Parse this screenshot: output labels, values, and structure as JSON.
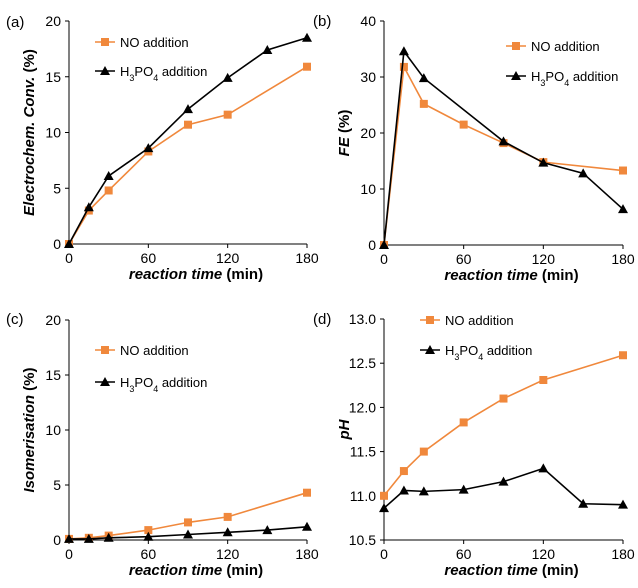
{
  "chart_data": [
    {
      "type": "line",
      "panel_label": "(a)",
      "xlabel": "reaction time",
      "xlabel_unit": "(min)",
      "ylabel": "Electrochem. Conv.",
      "ylabel_unit": "(%)",
      "xlim": [
        0,
        180
      ],
      "ylim": [
        0,
        20
      ],
      "xticks": [
        "0",
        "60",
        "120",
        "180"
      ],
      "yticks": [
        "0",
        "5",
        "10",
        "15",
        "20"
      ],
      "legend_position": "top-center",
      "series": [
        {
          "name": "NO addition",
          "name_html": "NO addition",
          "color": "#f0883c",
          "marker": "square",
          "x": [
            0,
            15,
            30,
            60,
            90,
            120,
            180
          ],
          "y": [
            0,
            3.0,
            4.8,
            8.3,
            10.7,
            11.6,
            15.9
          ]
        },
        {
          "name": "H3PO4 addition",
          "name_html": "H<tspan baseline-shift='sub' font-size='9'>3</tspan>PO<tspan baseline-shift='sub' font-size='9'>4</tspan> addition",
          "color": "#000000",
          "marker": "triangle",
          "x": [
            0,
            15,
            30,
            60,
            90,
            120,
            150,
            180
          ],
          "y": [
            0,
            3.3,
            6.1,
            8.6,
            12.1,
            14.9,
            17.4,
            18.5
          ]
        }
      ]
    },
    {
      "type": "line",
      "panel_label": "(b)",
      "xlabel": "reaction time",
      "xlabel_unit": "(min)",
      "ylabel": "FE",
      "ylabel_unit": "(%)",
      "xlim": [
        0,
        180
      ],
      "ylim": [
        0,
        40
      ],
      "xticks": [
        "0",
        "60",
        "120",
        "180"
      ],
      "yticks": [
        "0",
        "10",
        "20",
        "30",
        "40"
      ],
      "legend_position": "top-right",
      "series": [
        {
          "name": "NO addition",
          "name_html": "NO addition",
          "color": "#f0883c",
          "marker": "square",
          "x": [
            0,
            15,
            30,
            60,
            90,
            120,
            180
          ],
          "y": [
            0,
            31.8,
            25.2,
            21.5,
            18.2,
            14.8,
            13.3
          ]
        },
        {
          "name": "H3PO4 addition",
          "name_html": "H<tspan baseline-shift='sub' font-size='9'>3</tspan>PO<tspan baseline-shift='sub' font-size='9'>4</tspan> addition",
          "color": "#000000",
          "marker": "triangle",
          "x": [
            0,
            15,
            30,
            90,
            120,
            150,
            180
          ],
          "y": [
            0,
            34.6,
            29.8,
            18.5,
            14.7,
            12.8,
            6.4
          ]
        }
      ]
    },
    {
      "type": "line",
      "panel_label": "(c)",
      "xlabel": "reaction time",
      "xlabel_unit": "(min)",
      "ylabel": "Isomerisation",
      "ylabel_unit": "(%)",
      "xlim": [
        0,
        180
      ],
      "ylim": [
        0,
        20
      ],
      "xticks": [
        "0",
        "60",
        "120",
        "180"
      ],
      "yticks": [
        "0",
        "5",
        "10",
        "15",
        "20"
      ],
      "legend_position": "top-center",
      "series": [
        {
          "name": "NO addition",
          "name_html": "NO addition",
          "color": "#f0883c",
          "marker": "square",
          "x": [
            0,
            15,
            30,
            60,
            90,
            120,
            180
          ],
          "y": [
            0.1,
            0.2,
            0.4,
            0.9,
            1.6,
            2.1,
            4.3
          ]
        },
        {
          "name": "H3PO4 addition",
          "name_html": "H<tspan baseline-shift='sub' font-size='9'>3</tspan>PO<tspan baseline-shift='sub' font-size='9'>4</tspan> addition",
          "color": "#000000",
          "marker": "triangle",
          "x": [
            0,
            15,
            30,
            60,
            90,
            120,
            150,
            180
          ],
          "y": [
            0.1,
            0.1,
            0.2,
            0.3,
            0.5,
            0.7,
            0.9,
            1.2
          ]
        }
      ]
    },
    {
      "type": "line",
      "panel_label": "(d)",
      "xlabel": "reaction time",
      "xlabel_unit": "(min)",
      "ylabel": "pH",
      "ylabel_unit": "",
      "xlim": [
        0,
        180
      ],
      "ylim": [
        10.5,
        13.0
      ],
      "xticks": [
        "0",
        "60",
        "120",
        "180"
      ],
      "yticks": [
        "10.5",
        "11.0",
        "11.5",
        "12.0",
        "12.5",
        "13.0"
      ],
      "legend_position": "top-left",
      "series": [
        {
          "name": "NO addition",
          "name_html": "NO addition",
          "color": "#f0883c",
          "marker": "square",
          "x": [
            0,
            15,
            30,
            60,
            90,
            120,
            180
          ],
          "y": [
            11.0,
            11.28,
            11.5,
            11.83,
            12.1,
            12.31,
            12.59
          ]
        },
        {
          "name": "H3PO4 addition",
          "name_html": "H<tspan baseline-shift='sub' font-size='9'>3</tspan>PO<tspan baseline-shift='sub' font-size='9'>4</tspan> addition",
          "color": "#000000",
          "marker": "triangle",
          "x": [
            0,
            15,
            30,
            60,
            90,
            120,
            150,
            180
          ],
          "y": [
            10.86,
            11.06,
            11.05,
            11.07,
            11.16,
            11.31,
            10.91,
            10.9
          ]
        }
      ]
    }
  ]
}
